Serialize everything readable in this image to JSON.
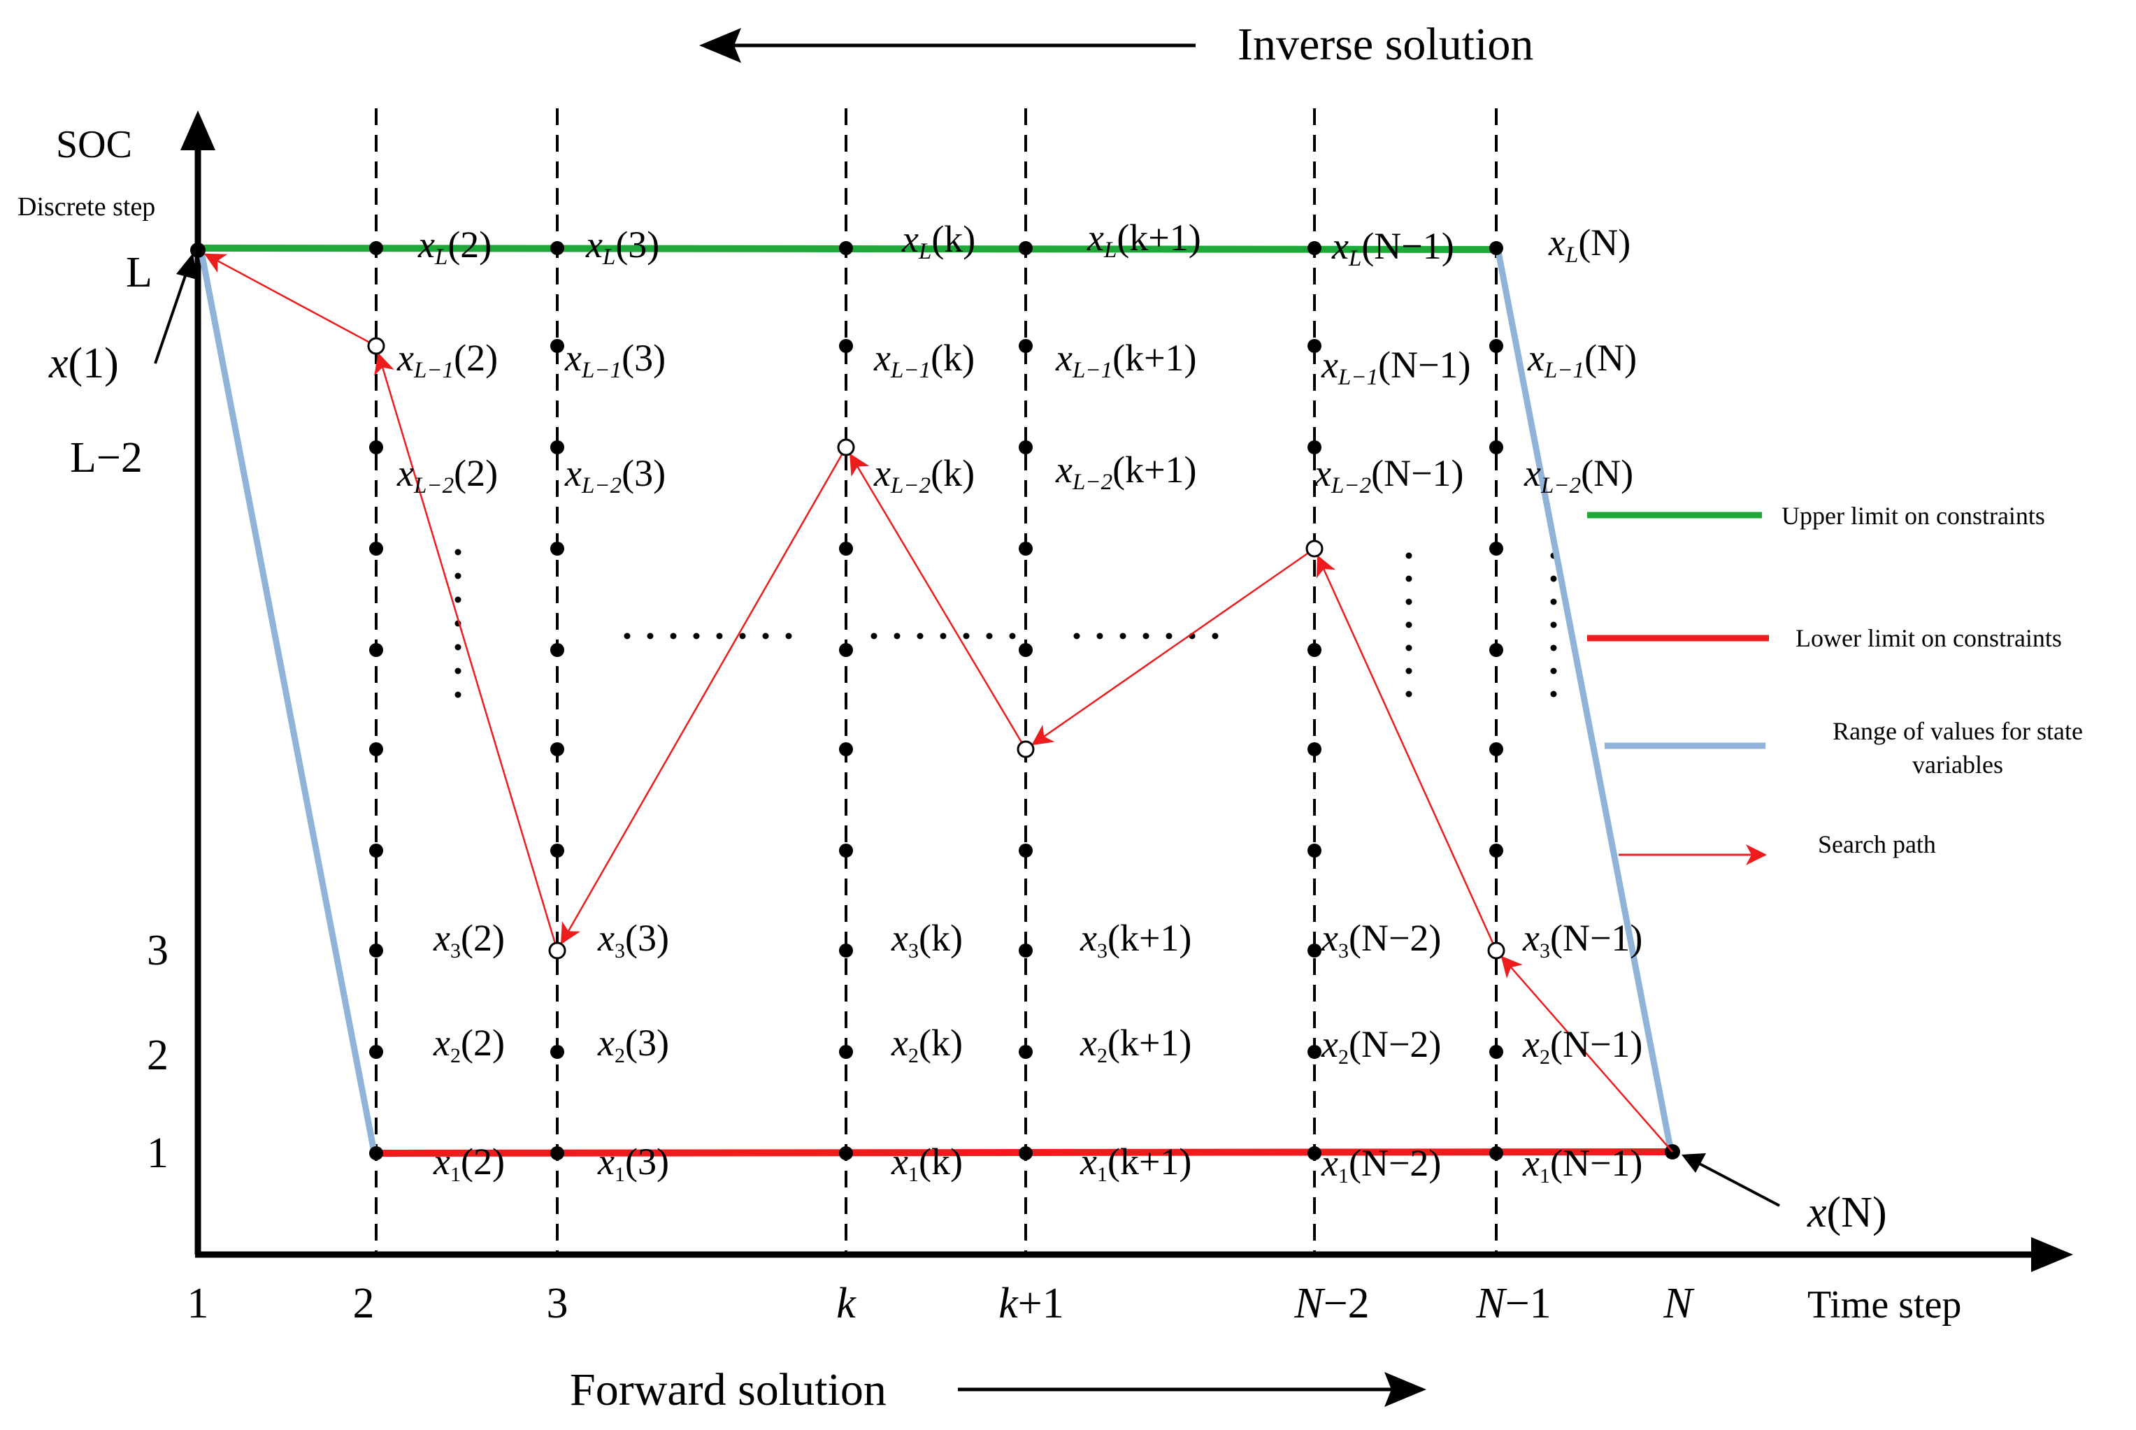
{
  "title_top": "Inverse solution",
  "title_bottom": "Forward solution",
  "y_axis": {
    "title": "SOC",
    "subtitle": "Discrete step"
  },
  "x_axis": {
    "title": "Time step"
  },
  "x_ticks": [
    {
      "base": "1",
      "sub": "",
      "tail": ""
    },
    {
      "base": "2",
      "sub": "",
      "tail": ""
    },
    {
      "base": "3",
      "sub": "",
      "tail": ""
    },
    {
      "base": "",
      "sub": "",
      "tail": "",
      "italic": "k"
    },
    {
      "base": "",
      "sub": "",
      "tail": "+1",
      "italic": "k"
    },
    {
      "base": "",
      "sub": "",
      "tail": "−2",
      "italic": "N"
    },
    {
      "base": "",
      "sub": "",
      "tail": "−1",
      "italic": "N"
    },
    {
      "base": "",
      "sub": "",
      "tail": "",
      "italic": "N"
    }
  ],
  "y_ticks": [
    "L",
    "L−2",
    "3",
    "2",
    "1"
  ],
  "endpoint_labels": {
    "start": "x(1)",
    "end": "x(N)",
    "start_var": "x",
    "start_arg": "(1)",
    "end_var": "x",
    "end_arg": "(N)"
  },
  "grid_labels": {
    "rowL": [
      {
        "v": "x",
        "s": "L",
        "a": "(2)"
      },
      {
        "v": "x",
        "s": "L",
        "a": "(3)"
      },
      {
        "v": "x",
        "s": "L",
        "a": "(k)"
      },
      {
        "v": "x",
        "s": "L",
        "a": "(k+1)"
      },
      {
        "v": "x",
        "s": "L",
        "a": "(N−1)"
      },
      {
        "v": "x",
        "s": "L",
        "a": "(N)"
      }
    ],
    "rowL1": [
      {
        "v": "x",
        "s": "L−1",
        "a": "(2)"
      },
      {
        "v": "x",
        "s": "L−1",
        "a": "(3)"
      },
      {
        "v": "x",
        "s": "L−1",
        "a": "(k)"
      },
      {
        "v": "x",
        "s": "L−1",
        "a": "(k+1)"
      },
      {
        "v": "x",
        "s": "L−1",
        "a": "(N−1)"
      },
      {
        "v": "x",
        "s": "L−1",
        "a": "(N)"
      }
    ],
    "rowL2": [
      {
        "v": "x",
        "s": "L−2",
        "a": "(2)"
      },
      {
        "v": "x",
        "s": "L−2",
        "a": "(3)"
      },
      {
        "v": "x",
        "s": "L−2",
        "a": "(k)"
      },
      {
        "v": "x",
        "s": "L−2",
        "a": "(k+1)"
      },
      {
        "v": "x",
        "s": "L−2",
        "a": "(N−1)"
      },
      {
        "v": "x",
        "s": "L−2",
        "a": "(N)"
      }
    ],
    "row3": [
      {
        "v": "x",
        "s": "3",
        "a": "(2)"
      },
      {
        "v": "x",
        "s": "3",
        "a": "(3)"
      },
      {
        "v": "x",
        "s": "3",
        "a": "(k)"
      },
      {
        "v": "x",
        "s": "3",
        "a": "(k+1)"
      },
      {
        "v": "x",
        "s": "3",
        "a": "(N−2)"
      },
      {
        "v": "x",
        "s": "3",
        "a": "(N−1)"
      }
    ],
    "row2": [
      {
        "v": "x",
        "s": "2",
        "a": "(2)"
      },
      {
        "v": "x",
        "s": "2",
        "a": "(3)"
      },
      {
        "v": "x",
        "s": "2",
        "a": "(k)"
      },
      {
        "v": "x",
        "s": "2",
        "a": "(k+1)"
      },
      {
        "v": "x",
        "s": "2",
        "a": "(N−2)"
      },
      {
        "v": "x",
        "s": "2",
        "a": "(N−1)"
      }
    ],
    "row1": [
      {
        "v": "x",
        "s": "1",
        "a": "(2)"
      },
      {
        "v": "x",
        "s": "1",
        "a": "(3)"
      },
      {
        "v": "x",
        "s": "1",
        "a": "(k)"
      },
      {
        "v": "x",
        "s": "1",
        "a": "(k+1)"
      },
      {
        "v": "x",
        "s": "1",
        "a": "(N−2)"
      },
      {
        "v": "x",
        "s": "1",
        "a": "(N−1)"
      }
    ]
  },
  "legend": [
    {
      "label": "Upper limit on constraints",
      "color": "#1fa83a"
    },
    {
      "label": "Lower limit on constraints",
      "color": "#ee1c1c"
    },
    {
      "label": "Range of values for state variables",
      "label_line1": "Range of values for state",
      "label_line2": "variables",
      "color": "#8fb3d9"
    },
    {
      "label": "Search path",
      "color": "#ee1c1c"
    }
  ],
  "colors": {
    "upper": "#1fa83a",
    "lower": "#ee1c1c",
    "range": "#8fb3d9",
    "path": "#ee1c1c",
    "axis": "#000000"
  }
}
